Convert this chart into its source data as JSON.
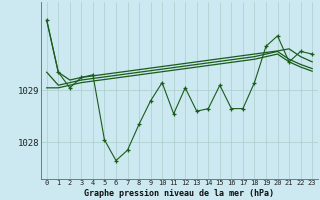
{
  "title": "Graphe pression niveau de la mer (hPa)",
  "bg_color": "#cce8f0",
  "grid_color": "#aacccc",
  "line_color": "#1a5c1a",
  "x_labels": [
    "0",
    "1",
    "2",
    "3",
    "4",
    "5",
    "6",
    "7",
    "8",
    "9",
    "10",
    "11",
    "12",
    "13",
    "14",
    "15",
    "16",
    "17",
    "18",
    "19",
    "20",
    "21",
    "22",
    "23"
  ],
  "ylim": [
    1027.3,
    1030.7
  ],
  "yticks": [
    1028,
    1029
  ],
  "main_data": [
    1030.35,
    1029.35,
    1029.05,
    1029.25,
    1029.3,
    1028.05,
    1027.65,
    1027.85,
    1028.35,
    1028.8,
    1029.15,
    1028.55,
    1029.05,
    1028.6,
    1028.65,
    1029.1,
    1028.65,
    1028.65,
    1029.15,
    1029.85,
    1030.05,
    1029.55,
    1029.75,
    1029.7
  ],
  "trend1": [
    1030.35,
    1029.35,
    1029.2,
    1029.25,
    1029.28,
    1029.31,
    1029.34,
    1029.37,
    1029.4,
    1029.43,
    1029.46,
    1029.49,
    1029.52,
    1029.55,
    1029.58,
    1029.61,
    1029.64,
    1029.67,
    1029.7,
    1029.73,
    1029.76,
    1029.8,
    1029.65,
    1029.55
  ],
  "trend2": [
    1029.35,
    1029.1,
    1029.15,
    1029.2,
    1029.23,
    1029.26,
    1029.29,
    1029.32,
    1029.35,
    1029.38,
    1029.41,
    1029.44,
    1029.47,
    1029.5,
    1029.53,
    1029.56,
    1029.59,
    1029.62,
    1029.65,
    1029.7,
    1029.75,
    1029.6,
    1029.5,
    1029.42
  ],
  "trend3": [
    1029.05,
    1029.05,
    1029.1,
    1029.15,
    1029.18,
    1029.21,
    1029.24,
    1029.27,
    1029.3,
    1029.33,
    1029.36,
    1029.39,
    1029.42,
    1029.45,
    1029.48,
    1029.51,
    1029.54,
    1029.57,
    1029.6,
    1029.65,
    1029.7,
    1029.55,
    1029.45,
    1029.37
  ]
}
